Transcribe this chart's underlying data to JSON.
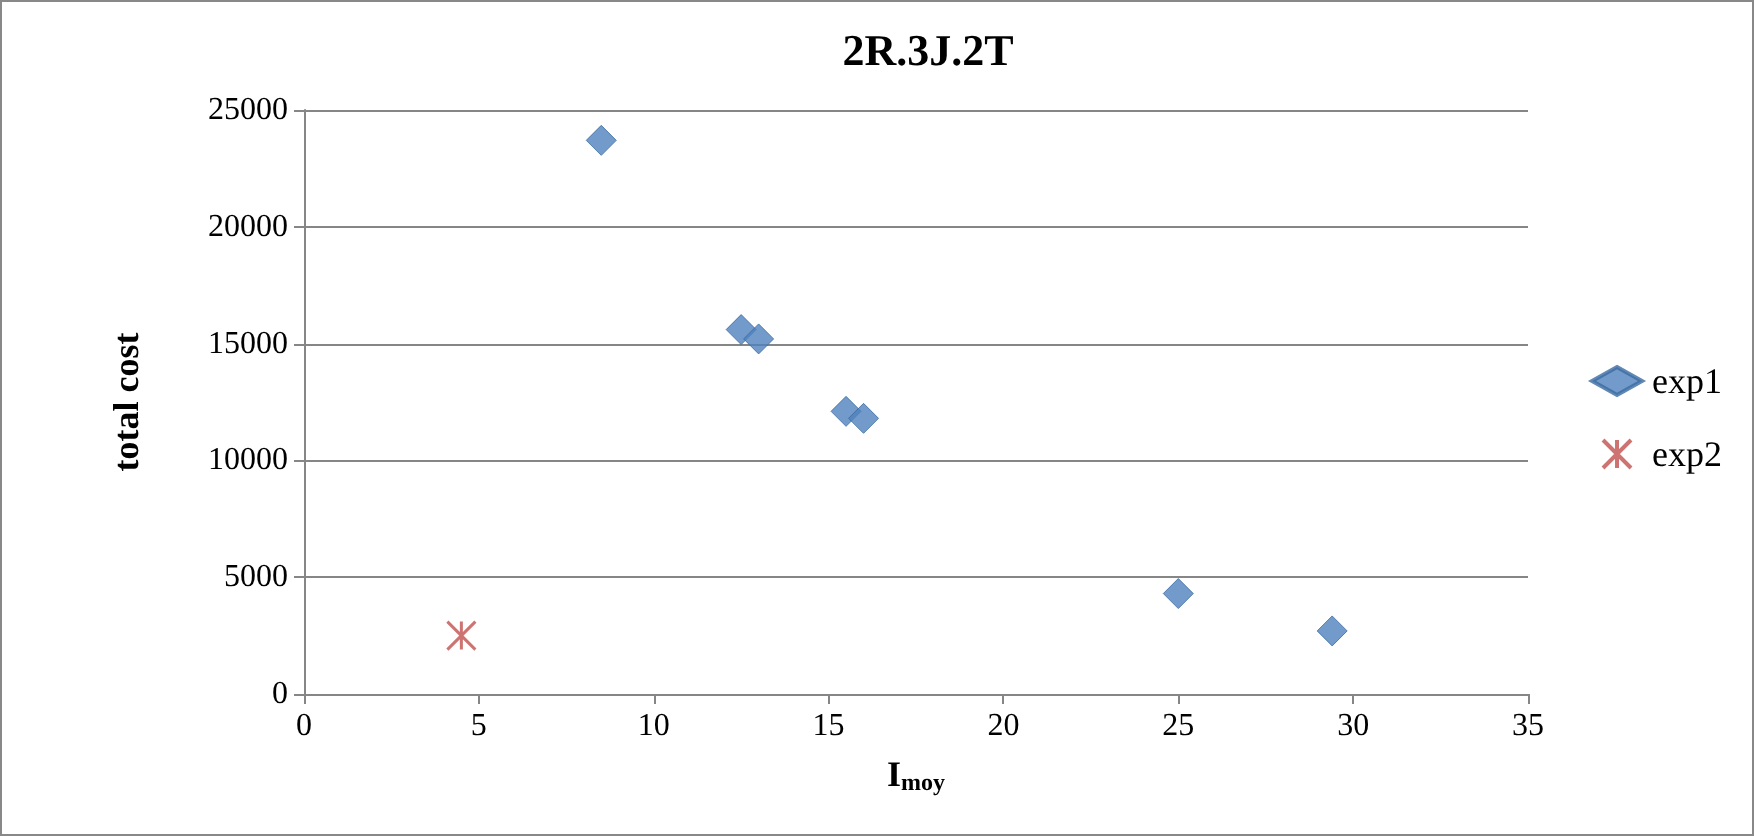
{
  "chart_data": {
    "type": "scatter",
    "title": "2R.3J.2T",
    "xlabel": "I$_{moy}$",
    "ylabel": "total cost",
    "series": [
      {
        "name": "exp1",
        "color": "#4f81bd",
        "marker": "diamond",
        "x": [
          8.5,
          12.5,
          13,
          15.5,
          16,
          25,
          29.4
        ],
        "values": [
          23700,
          15600,
          15200,
          12100,
          11800,
          4300,
          2700
        ]
      },
      {
        "name": "exp2",
        "color": "#c0504d",
        "marker": "cross",
        "x": [
          4.5
        ],
        "values": [
          2500
        ]
      }
    ],
    "xlim": [
      0,
      35
    ],
    "xticks": [
      0,
      5,
      10,
      15,
      20,
      25,
      30,
      35
    ],
    "ylim": [
      0,
      25000
    ],
    "yticks": [
      0,
      5000,
      10000,
      15000,
      20000,
      25000
    ],
    "grid": "y",
    "legend": "right"
  }
}
